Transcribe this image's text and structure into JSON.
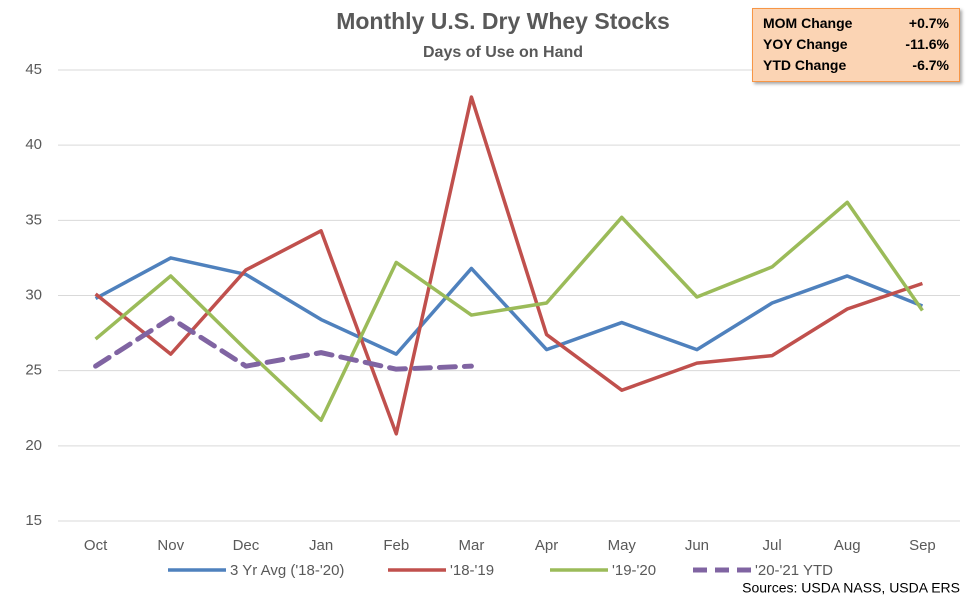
{
  "chart_data": {
    "type": "line",
    "title": "Monthly U.S. Dry Whey Stocks",
    "subtitle": "Days of Use on Hand",
    "source": "Sources: USDA NASS, USDA ERS",
    "categories": [
      "Oct",
      "Nov",
      "Dec",
      "Jan",
      "Feb",
      "Mar",
      "Apr",
      "May",
      "Jun",
      "Jul",
      "Aug",
      "Sep"
    ],
    "series": [
      {
        "name": "3 Yr Avg ('18-'20)",
        "color": "#4f81bd",
        "dashed": false,
        "values": [
          29.8,
          32.5,
          31.4,
          28.4,
          26.1,
          31.8,
          26.4,
          28.2,
          26.4,
          29.5,
          31.3,
          29.3
        ]
      },
      {
        "name": "'18-'19",
        "color": "#c0504d",
        "dashed": false,
        "values": [
          30.1,
          26.1,
          31.7,
          34.3,
          20.8,
          43.2,
          27.4,
          23.7,
          25.5,
          26.0,
          29.1,
          30.8
        ]
      },
      {
        "name": "'19-'20",
        "color": "#9bbb59",
        "dashed": false,
        "values": [
          27.1,
          31.3,
          26.4,
          21.7,
          32.2,
          28.7,
          29.5,
          35.2,
          29.9,
          31.9,
          36.2,
          29.0
        ]
      },
      {
        "name": "'20-'21 YTD",
        "color": "#8064a2",
        "dashed": true,
        "values": [
          25.3,
          28.5,
          25.3,
          26.2,
          25.1,
          25.3,
          null,
          null,
          null,
          null,
          null,
          null
        ]
      }
    ],
    "ylim": [
      15,
      45
    ],
    "yticks": [
      15,
      20,
      25,
      30,
      35,
      40,
      45
    ],
    "grid": true,
    "summary": [
      [
        "MOM Change",
        "+0.7%"
      ],
      [
        "YOY Change",
        "-11.6%"
      ],
      [
        "YTD Change",
        "-6.7%"
      ]
    ]
  }
}
